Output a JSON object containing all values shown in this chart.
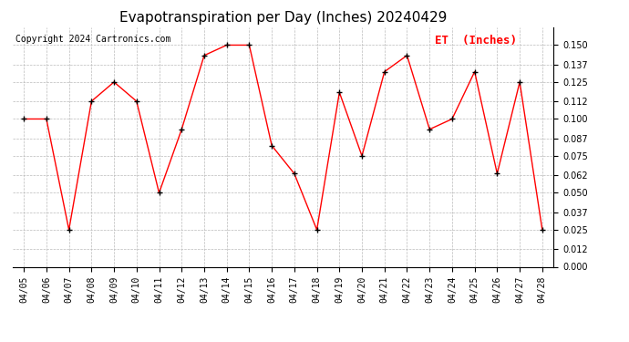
{
  "title": "Evapotranspiration per Day (Inches) 20240429",
  "copyright": "Copyright 2024 Cartronics.com",
  "legend_label": "ET  (Inches)",
  "dates": [
    "04/05",
    "04/06",
    "04/07",
    "04/08",
    "04/09",
    "04/10",
    "04/11",
    "04/12",
    "04/13",
    "04/14",
    "04/15",
    "04/16",
    "04/17",
    "04/18",
    "04/19",
    "04/20",
    "04/21",
    "04/22",
    "04/23",
    "04/24",
    "04/25",
    "04/26",
    "04/27",
    "04/28"
  ],
  "values": [
    0.1,
    0.1,
    0.025,
    0.112,
    0.125,
    0.112,
    0.05,
    0.093,
    0.143,
    0.15,
    0.15,
    0.082,
    0.063,
    0.025,
    0.118,
    0.075,
    0.132,
    0.143,
    0.093,
    0.1,
    0.132,
    0.063,
    0.125,
    0.025
  ],
  "line_color": "red",
  "marker_color": "black",
  "background_color": "#ffffff",
  "grid_color": "#bbbbbb",
  "ylim": [
    0.0,
    0.162
  ],
  "yticks": [
    0.0,
    0.012,
    0.025,
    0.037,
    0.05,
    0.062,
    0.075,
    0.087,
    0.1,
    0.112,
    0.125,
    0.137,
    0.15
  ],
  "title_fontsize": 11,
  "copyright_fontsize": 7,
  "legend_fontsize": 9,
  "tick_fontsize": 7,
  "line_width": 1.0,
  "marker_size": 4
}
